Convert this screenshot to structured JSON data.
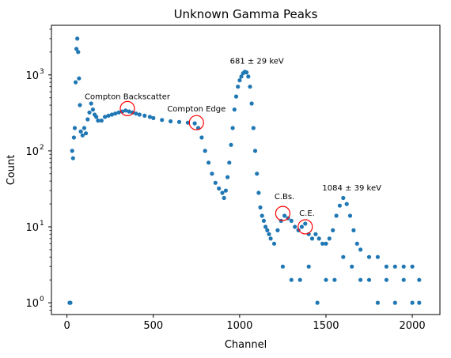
{
  "chart_data": {
    "type": "scatter",
    "title": "Unknown Gamma Peaks",
    "xlabel": "Channel",
    "ylabel": "Count",
    "xlim": [
      -90,
      2160
    ],
    "ylim": [
      0.7,
      4500
    ],
    "yscale": "log",
    "grid": false,
    "x_ticks": [
      0,
      500,
      1000,
      1500,
      2000
    ],
    "x_tick_labels": [
      "0",
      "500",
      "1000",
      "1500",
      "2000"
    ],
    "y_ticks": [
      1,
      10,
      100,
      1000
    ],
    "y_tick_labels": [
      "10",
      "10",
      "10",
      "10"
    ],
    "y_tick_exponents": [
      "0",
      "1",
      "2",
      "3"
    ],
    "marker_color": "#1f77b4",
    "circle_color": "#ff0000",
    "series": [
      {
        "points": [
          [
            15,
            1
          ],
          [
            20,
            1
          ],
          [
            30,
            100
          ],
          [
            35,
            80
          ],
          [
            40,
            150
          ],
          [
            45,
            200
          ],
          [
            50,
            800
          ],
          [
            55,
            2200
          ],
          [
            60,
            3000
          ],
          [
            65,
            2000
          ],
          [
            70,
            900
          ],
          [
            75,
            400
          ],
          [
            80,
            180
          ],
          [
            90,
            160
          ],
          [
            100,
            200
          ],
          [
            110,
            170
          ],
          [
            120,
            260
          ],
          [
            130,
            320
          ],
          [
            140,
            420
          ],
          [
            150,
            350
          ],
          [
            160,
            300
          ],
          [
            170,
            280
          ],
          [
            180,
            250
          ],
          [
            200,
            250
          ],
          [
            220,
            280
          ],
          [
            240,
            290
          ],
          [
            260,
            300
          ],
          [
            280,
            310
          ],
          [
            300,
            320
          ],
          [
            320,
            330
          ],
          [
            340,
            340
          ],
          [
            360,
            330
          ],
          [
            380,
            320
          ],
          [
            400,
            310
          ],
          [
            420,
            300
          ],
          [
            450,
            290
          ],
          [
            480,
            280
          ],
          [
            500,
            270
          ],
          [
            550,
            255
          ],
          [
            600,
            245
          ],
          [
            650,
            240
          ],
          [
            700,
            235
          ],
          [
            740,
            230
          ],
          [
            760,
            200
          ],
          [
            780,
            150
          ],
          [
            800,
            100
          ],
          [
            820,
            70
          ],
          [
            840,
            50
          ],
          [
            860,
            38
          ],
          [
            880,
            32
          ],
          [
            900,
            28
          ],
          [
            910,
            24
          ],
          [
            920,
            30
          ],
          [
            930,
            45
          ],
          [
            940,
            70
          ],
          [
            950,
            120
          ],
          [
            960,
            200
          ],
          [
            970,
            350
          ],
          [
            980,
            520
          ],
          [
            990,
            700
          ],
          [
            1000,
            850
          ],
          [
            1010,
            950
          ],
          [
            1020,
            1050
          ],
          [
            1030,
            1100
          ],
          [
            1040,
            1080
          ],
          [
            1050,
            950
          ],
          [
            1060,
            700
          ],
          [
            1070,
            420
          ],
          [
            1080,
            200
          ],
          [
            1090,
            100
          ],
          [
            1100,
            50
          ],
          [
            1110,
            28
          ],
          [
            1120,
            18
          ],
          [
            1130,
            14
          ],
          [
            1140,
            12
          ],
          [
            1150,
            10
          ],
          [
            1160,
            9
          ],
          [
            1170,
            8
          ],
          [
            1180,
            7
          ],
          [
            1200,
            6
          ],
          [
            1220,
            9
          ],
          [
            1240,
            12
          ],
          [
            1260,
            14
          ],
          [
            1280,
            13
          ],
          [
            1300,
            12
          ],
          [
            1320,
            10
          ],
          [
            1340,
            9
          ],
          [
            1360,
            10
          ],
          [
            1380,
            11
          ],
          [
            1400,
            8
          ],
          [
            1420,
            7
          ],
          [
            1440,
            8
          ],
          [
            1460,
            7
          ],
          [
            1480,
            6
          ],
          [
            1500,
            6
          ],
          [
            1520,
            7
          ],
          [
            1540,
            9
          ],
          [
            1560,
            14
          ],
          [
            1580,
            19
          ],
          [
            1600,
            24
          ],
          [
            1620,
            20
          ],
          [
            1640,
            14
          ],
          [
            1660,
            9
          ],
          [
            1680,
            6
          ],
          [
            1700,
            5
          ],
          [
            1750,
            4
          ],
          [
            1800,
            4
          ],
          [
            1850,
            3
          ],
          [
            1900,
            3
          ],
          [
            1950,
            3
          ],
          [
            2000,
            3
          ],
          [
            2040,
            2
          ],
          [
            1250,
            3
          ],
          [
            1300,
            2
          ],
          [
            1350,
            2
          ],
          [
            1400,
            3
          ],
          [
            1450,
            1
          ],
          [
            1500,
            2
          ],
          [
            1550,
            2
          ],
          [
            1600,
            4
          ],
          [
            1650,
            3
          ],
          [
            1700,
            2
          ],
          [
            1750,
            2
          ],
          [
            1800,
            1
          ],
          [
            1850,
            2
          ],
          [
            1900,
            1
          ],
          [
            1950,
            2
          ],
          [
            2000,
            1
          ],
          [
            2040,
            1
          ]
        ]
      }
    ],
    "annotations": [
      {
        "text": "681 ± 29 keV",
        "x": 1100,
        "y": 1400
      },
      {
        "text": "Compton Backscatter",
        "x": 350,
        "y": 480
      },
      {
        "text": "Compton Edge",
        "x": 750,
        "y": 330
      },
      {
        "text": "C.Bs.",
        "x": 1260,
        "y": 23
      },
      {
        "text": "C.E.",
        "x": 1390,
        "y": 14
      },
      {
        "text": "1084 ± 39 keV",
        "x": 1650,
        "y": 30
      }
    ],
    "circles": [
      {
        "x": 350,
        "y": 360
      },
      {
        "x": 750,
        "y": 235
      },
      {
        "x": 1250,
        "y": 15
      },
      {
        "x": 1380,
        "y": 10
      }
    ]
  }
}
